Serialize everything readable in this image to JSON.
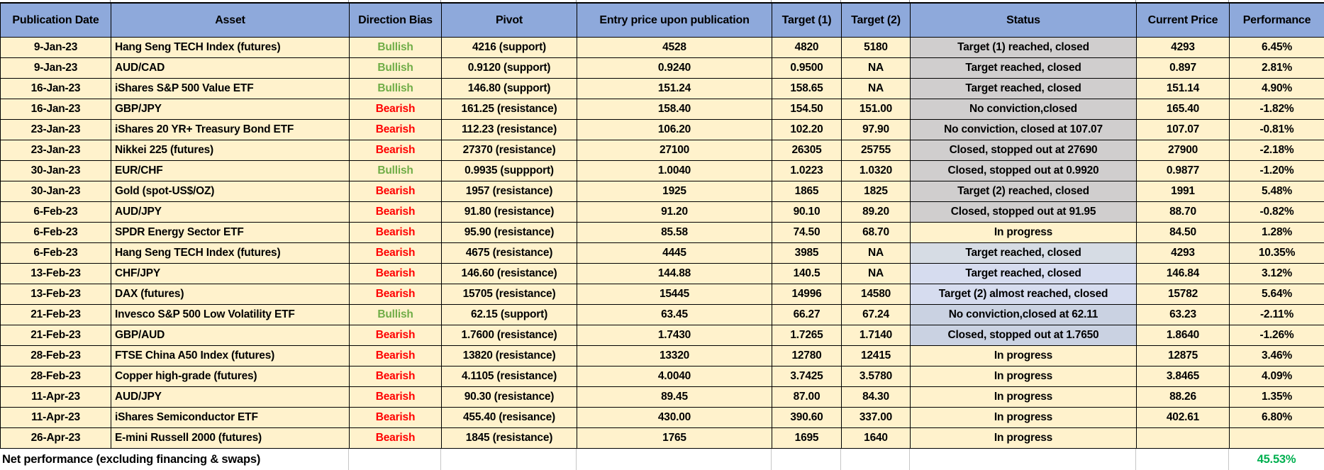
{
  "header": {
    "columns": [
      "Publication Date",
      "Asset",
      "Direction Bias",
      "Pivot",
      "Entry price upon publication",
      "Target (1)",
      "Target (2)",
      "Status",
      "Current Price",
      "Performance"
    ]
  },
  "colors": {
    "header_bg": "#8EA9DB",
    "row_bg": "#FFF2CC",
    "bullish": "#70AD47",
    "bearish": "#FF0000",
    "net_value": "#00B050",
    "status_gray": "#D0CECE",
    "status_bluegray": "#D6DCE4",
    "status_periwinkle": "#D6DCEF",
    "status_bluegray_dark": "#CAD2E2"
  },
  "rows": [
    {
      "date": "9-Jan-23",
      "asset": "Hang Seng TECH Index (futures)",
      "bias": "Bullish",
      "pivot": "4216 (support)",
      "entry": "4528",
      "target1": "4820",
      "target2": "5180",
      "status": "Target (1) reached, closed",
      "status_bg": "gray",
      "current_price": "4293",
      "performance": "6.45%"
    },
    {
      "date": "9-Jan-23",
      "asset": "AUD/CAD",
      "bias": "Bullish",
      "pivot": "0.9120 (support)",
      "entry": "0.9240",
      "target1": "0.9500",
      "target2": "NA",
      "status": "Target reached, closed",
      "status_bg": "gray",
      "current_price": "0.897",
      "performance": "2.81%"
    },
    {
      "date": "16-Jan-23",
      "asset": "iShares S&P 500 Value ETF",
      "bias": "Bullish",
      "pivot": "146.80 (support)",
      "entry": "151.24",
      "target1": "158.65",
      "target2": "NA",
      "status": "Target reached, closed",
      "status_bg": "gray",
      "current_price": "151.14",
      "performance": "4.90%"
    },
    {
      "date": "16-Jan-23",
      "asset": "GBP/JPY",
      "bias": "Bearish",
      "pivot": "161.25 (resistance)",
      "entry": "158.40",
      "target1": "154.50",
      "target2": "151.00",
      "status": "No conviction,closed",
      "status_bg": "gray",
      "current_price": "165.40",
      "performance": "-1.82%"
    },
    {
      "date": "23-Jan-23",
      "asset": "iShares 20 YR+ Treasury Bond ETF",
      "bias": "Bearish",
      "pivot": "112.23 (resistance)",
      "entry": "106.20",
      "target1": "102.20",
      "target2": "97.90",
      "status": "No conviction, closed at 107.07",
      "status_bg": "gray",
      "current_price": "107.07",
      "performance": "-0.81%"
    },
    {
      "date": "23-Jan-23",
      "asset": "Nikkei 225 (futures)",
      "bias": "Bearish",
      "pivot": "27370 (resistance)",
      "entry": "27100",
      "target1": "26305",
      "target2": "25755",
      "status": "Closed, stopped out at 27690",
      "status_bg": "gray",
      "current_price": "27900",
      "performance": "-2.18%"
    },
    {
      "date": "30-Jan-23",
      "asset": "EUR/CHF",
      "bias": "Bullish",
      "pivot": "0.9935 (suppport)",
      "entry": "1.0040",
      "target1": "1.0223",
      "target2": "1.0320",
      "status": "Closed, stopped out at 0.9920",
      "status_bg": "gray",
      "current_price": "0.9877",
      "performance": "-1.20%"
    },
    {
      "date": "30-Jan-23",
      "asset": "Gold (spot-US$/OZ)",
      "bias": "Bearish",
      "pivot": "1957 (resistance)",
      "entry": "1925",
      "target1": "1865",
      "target2": "1825",
      "status": "Target (2) reached, closed",
      "status_bg": "gray",
      "current_price": "1991",
      "performance": "5.48%"
    },
    {
      "date": "6-Feb-23",
      "asset": "AUD/JPY",
      "bias": "Bearish",
      "pivot": "91.80 (resistance)",
      "entry": "91.20",
      "target1": "90.10",
      "target2": "89.20",
      "status": "Closed, stopped out at 91.95",
      "status_bg": "gray",
      "current_price": "88.70",
      "performance": "-0.82%"
    },
    {
      "date": "6-Feb-23",
      "asset": "SPDR Energy Sector ETF",
      "bias": "Bearish",
      "pivot": "95.90 (resistance)",
      "entry": "85.58",
      "target1": "74.50",
      "target2": "68.70",
      "status": "In progress",
      "status_bg": "none",
      "current_price": "84.50",
      "performance": "1.28%"
    },
    {
      "date": "6-Feb-23",
      "asset": "Hang Seng TECH Index (futures)",
      "bias": "Bearish",
      "pivot": "4675 (resistance)",
      "entry": "4445",
      "target1": "3985",
      "target2": "NA",
      "status": "Target reached, closed",
      "status_bg": "bluegray",
      "current_price": "4293",
      "performance": "10.35%"
    },
    {
      "date": "13-Feb-23",
      "asset": "CHF/JPY",
      "bias": "Bearish",
      "pivot": "146.60 (resistance)",
      "entry": "144.88",
      "target1": "140.5",
      "target2": "NA",
      "status": "Target reached, closed",
      "status_bg": "periwinkle",
      "current_price": "146.84",
      "performance": "3.12%"
    },
    {
      "date": "13-Feb-23",
      "asset": "DAX (futures)",
      "bias": "Bearish",
      "pivot": "15705 (resistance)",
      "entry": "15445",
      "target1": "14996",
      "target2": "14580",
      "status": "Target (2) almost reached, closed",
      "status_bg": "periwinkle",
      "current_price": "15782",
      "performance": "5.64%"
    },
    {
      "date": "21-Feb-23",
      "asset": "Invesco S&P 500 Low Volatility ETF",
      "bias": "Bullish",
      "pivot": "62.15 (support)",
      "entry": "63.45",
      "target1": "66.27",
      "target2": "67.24",
      "status": "No conviction,closed at 62.11",
      "status_bg": "bluegray_dark",
      "current_price": "63.23",
      "performance": "-2.11%"
    },
    {
      "date": "21-Feb-23",
      "asset": "GBP/AUD",
      "bias": "Bearish",
      "pivot": "1.7600 (resistance)",
      "entry": "1.7430",
      "target1": "1.7265",
      "target2": "1.7140",
      "status": "Closed, stopped out at 1.7650",
      "status_bg": "bluegray_dark",
      "current_price": "1.8640",
      "performance": "-1.26%"
    },
    {
      "date": "28-Feb-23",
      "asset": "FTSE China A50 Index (futures)",
      "bias": "Bearish",
      "pivot": "13820 (resistance)",
      "entry": "13320",
      "target1": "12780",
      "target2": "12415",
      "status": "In progress",
      "status_bg": "none",
      "current_price": "12875",
      "performance": "3.46%"
    },
    {
      "date": "28-Feb-23",
      "asset": "Copper high-grade (futures)",
      "bias": "Bearish",
      "pivot": "4.1105 (resistance)",
      "entry": "4.0040",
      "target1": "3.7425",
      "target2": "3.5780",
      "status": "In progress",
      "status_bg": "none",
      "current_price": "3.8465",
      "performance": "4.09%"
    },
    {
      "date": "11-Apr-23",
      "asset": "AUD/JPY",
      "bias": "Bearish",
      "pivot": "90.30 (resistance)",
      "entry": "89.45",
      "target1": "87.00",
      "target2": "84.30",
      "status": "In progress",
      "status_bg": "none",
      "current_price": "88.26",
      "performance": "1.35%"
    },
    {
      "date": "11-Apr-23",
      "asset": "iShares Semiconductor ETF",
      "bias": "Bearish",
      "pivot": "455.40 (resisance)",
      "entry": "430.00",
      "target1": "390.60",
      "target2": "337.00",
      "status": "In progress",
      "status_bg": "none",
      "current_price": "402.61",
      "performance": "6.80%"
    },
    {
      "date": "26-Apr-23",
      "asset": "E-mini Russell 2000 (futures)",
      "bias": "Bearish",
      "pivot": "1845 (resistance)",
      "entry": "1765",
      "target1": "1695",
      "target2": "1640",
      "status": "In progress",
      "status_bg": "none",
      "current_price": "",
      "performance": ""
    }
  ],
  "footer": {
    "label": "Net performance (excluding financing & swaps)",
    "value": "45.53%"
  }
}
